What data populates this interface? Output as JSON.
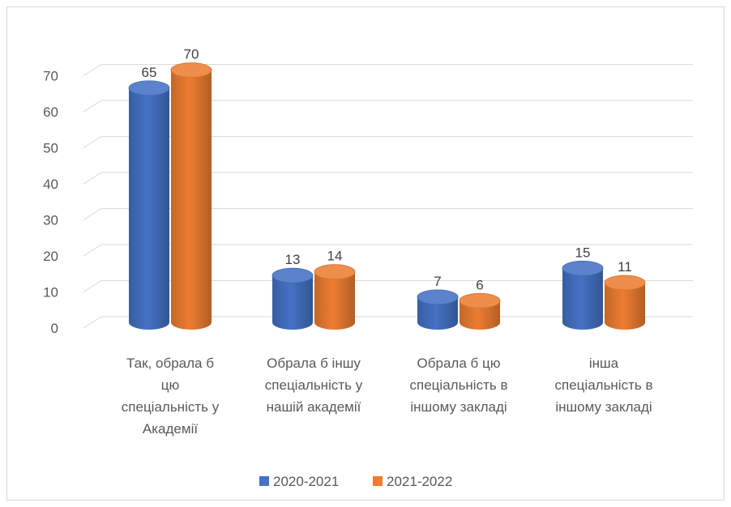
{
  "chart_data": {
    "type": "bar",
    "title": "",
    "xlabel": "",
    "ylabel": "",
    "ylim": [
      0,
      70
    ],
    "yticks": [
      0,
      10,
      20,
      30,
      40,
      50,
      60,
      70
    ],
    "grid": true,
    "legend_position": "bottom",
    "categories": [
      [
        "Так, обрала б",
        "цю",
        "спеціальність у",
        "Академії"
      ],
      [
        "Обрала б іншу",
        "спеціальність у",
        "нашій академії"
      ],
      [
        "Обрала б цю",
        "спеціальність в",
        "іншому закладі"
      ],
      [
        "інша",
        "спеціальність в",
        "іншому закладі"
      ]
    ],
    "series": [
      {
        "name": "2020-2021",
        "values": [
          65,
          13,
          7,
          15
        ],
        "color": "#4472c4"
      },
      {
        "name": "2021-2022",
        "values": [
          70,
          14,
          6,
          11
        ],
        "color": "#ed7d31"
      }
    ]
  }
}
